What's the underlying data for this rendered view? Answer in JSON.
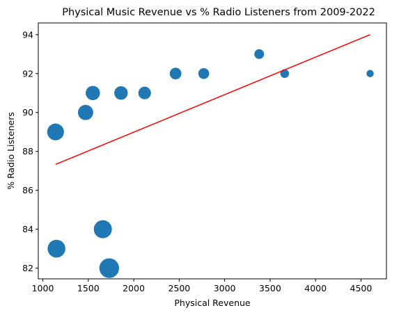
{
  "chart_data": {
    "type": "scatter",
    "title": "Physical Music Revenue vs % Radio Listeners from 2009-2022",
    "xlabel": "Physical Revenue",
    "ylabel": "% Radio Listeners",
    "xlim": [
      950,
      4780
    ],
    "ylim": [
      81.45,
      94.6
    ],
    "xticks": [
      1000,
      1500,
      2000,
      2500,
      3000,
      3500,
      4000,
      4500
    ],
    "yticks": [
      82,
      84,
      86,
      88,
      90,
      92,
      94
    ],
    "grid": false,
    "marker_color": "#1f77b4",
    "points": [
      {
        "x": 4600,
        "y": 92,
        "size": 50
      },
      {
        "x": 3660,
        "y": 92,
        "size": 75
      },
      {
        "x": 3380,
        "y": 93,
        "size": 95
      },
      {
        "x": 2770,
        "y": 92,
        "size": 120
      },
      {
        "x": 2460,
        "y": 92,
        "size": 140
      },
      {
        "x": 2120,
        "y": 91,
        "size": 165
      },
      {
        "x": 1860,
        "y": 91,
        "size": 190
      },
      {
        "x": 1550,
        "y": 91,
        "size": 215
      },
      {
        "x": 1470,
        "y": 90,
        "size": 245
      },
      {
        "x": 1140,
        "y": 89,
        "size": 300
      },
      {
        "x": 1150,
        "y": 83,
        "size": 340
      },
      {
        "x": 1660,
        "y": 84,
        "size": 350
      },
      {
        "x": 1730,
        "y": 82,
        "size": 420
      }
    ],
    "trend_line": {
      "color": "#ff0000",
      "start": {
        "x": 1140,
        "y": 87.33
      },
      "end": {
        "x": 4600,
        "y": 94.0
      }
    }
  }
}
